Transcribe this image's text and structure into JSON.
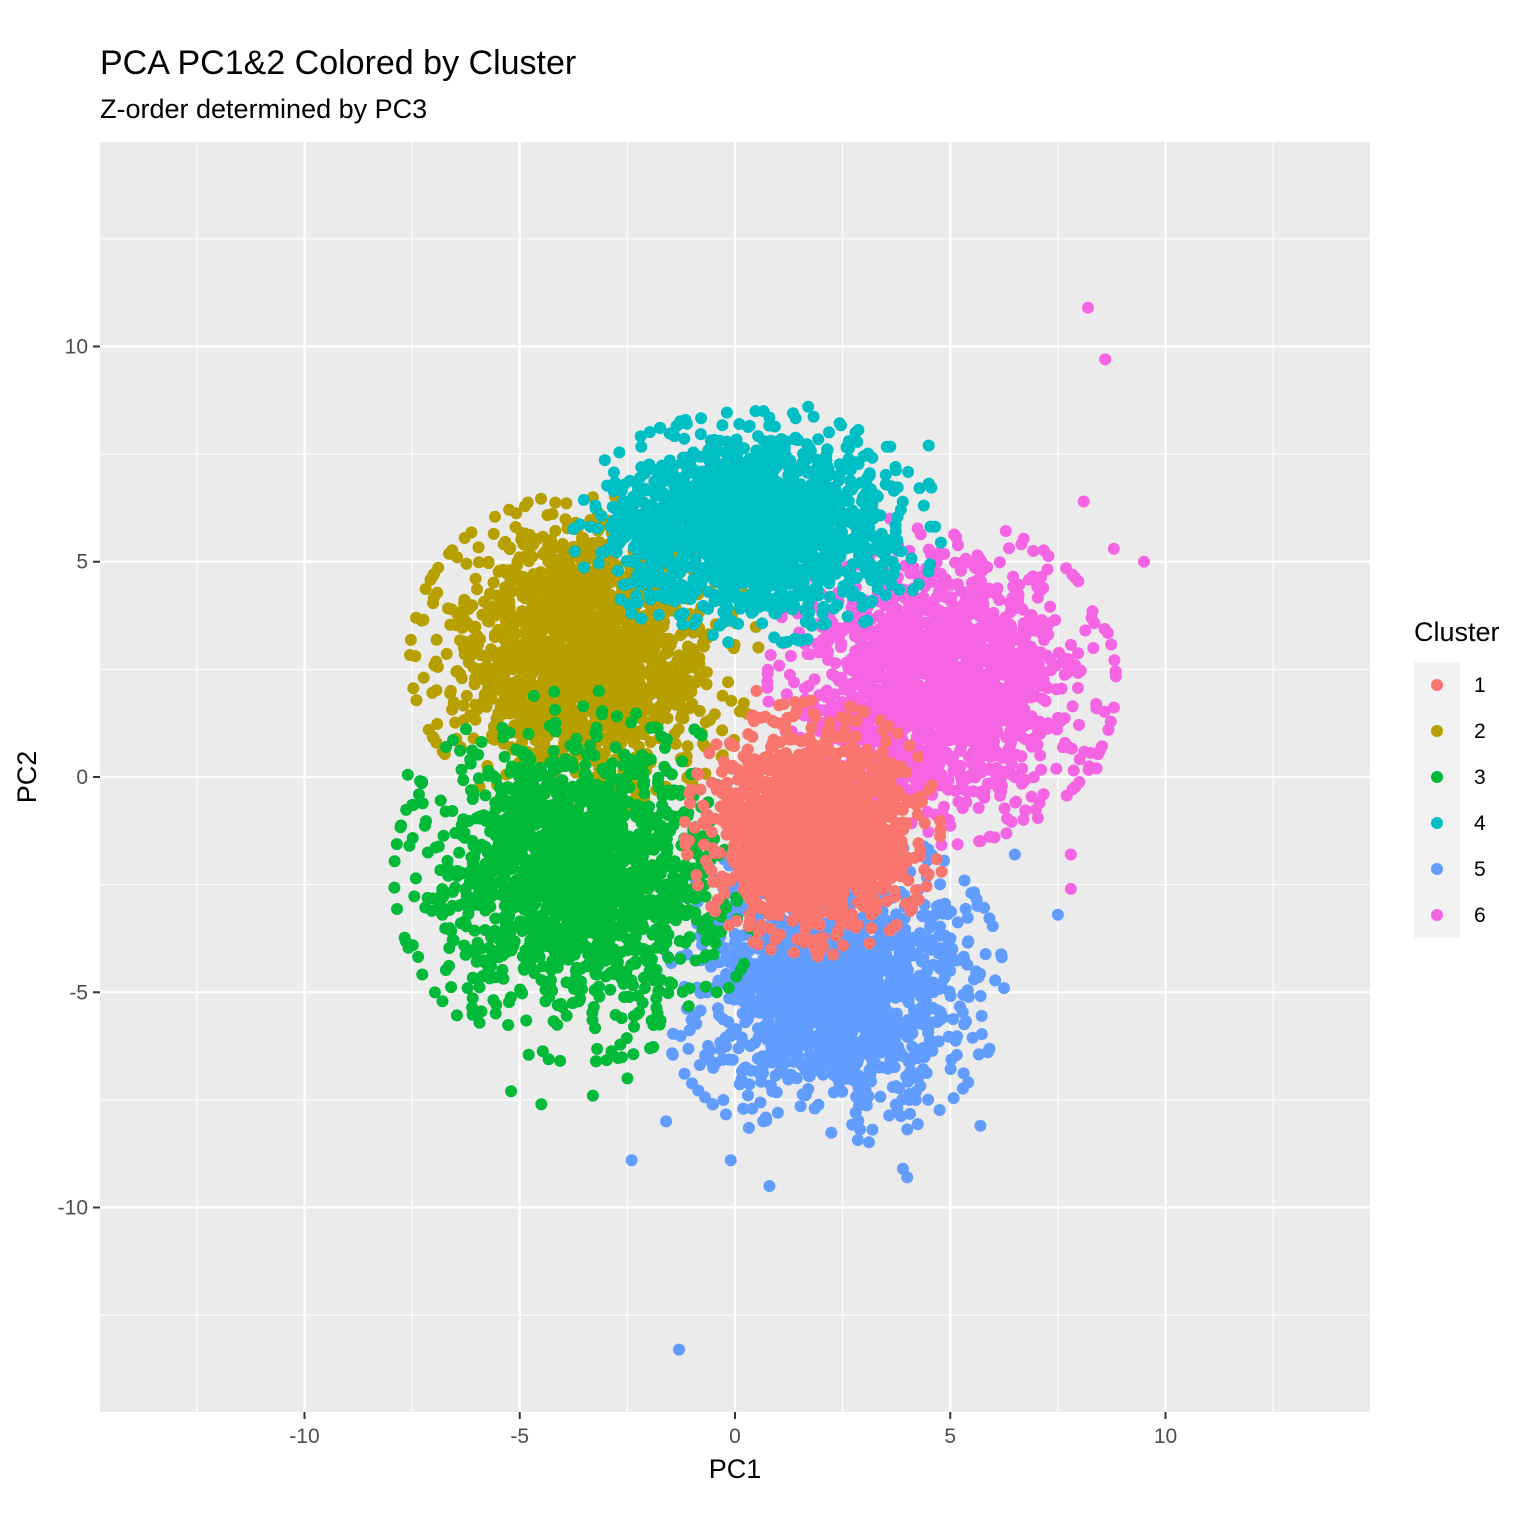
{
  "chart_data": {
    "type": "scatter",
    "title": "PCA PC1&2 Colored by Cluster",
    "subtitle": "Z-order determined by PC3",
    "xlabel": "PC1",
    "ylabel": "PC2",
    "xlim": [
      -14.75,
      14.75
    ],
    "ylim": [
      -14.75,
      14.75
    ],
    "x_ticks": [
      -10,
      -5,
      0,
      5,
      10
    ],
    "x_tick_labels": [
      "-10",
      "-5",
      "0",
      "5",
      "10"
    ],
    "y_ticks": [
      -10,
      -5,
      0,
      5,
      10
    ],
    "y_tick_labels": [
      "-10",
      "-5",
      "0",
      "5",
      "10"
    ],
    "grid": true,
    "legend_position": "right",
    "legend_title": "Cluster",
    "background": "#ebebeb",
    "series": [
      {
        "name": "1",
        "color": "#F8766D",
        "center": [
          1.8,
          -1.2
        ],
        "spread": [
          1.1,
          1.1
        ],
        "outliers": [
          [
            0.5,
            2.0
          ],
          [
            3.5,
            -2.5
          ],
          [
            0.8,
            -3.2
          ],
          [
            4.8,
            -2.2
          ],
          [
            2.5,
            -3.0
          ]
        ]
      },
      {
        "name": "2",
        "color": "#B79F00",
        "center": [
          -3.5,
          2.8
        ],
        "spread": [
          1.5,
          1.4
        ],
        "outliers": [
          [
            -7.0,
            0.9
          ],
          [
            -6.6,
            2.0
          ],
          [
            -5.2,
            4.3
          ],
          [
            -3.3,
            6.5
          ],
          [
            -4.9,
            4.5
          ],
          [
            -6.3,
            3.0
          ]
        ]
      },
      {
        "name": "3",
        "color": "#00BA38",
        "center": [
          -3.6,
          -2.3
        ],
        "spread": [
          1.6,
          1.6
        ],
        "outliers": [
          [
            -7.6,
            0.05
          ],
          [
            -6.8,
            -3.2
          ],
          [
            -6.0,
            -4.7
          ],
          [
            -5.2,
            -7.3
          ],
          [
            -4.5,
            -7.6
          ],
          [
            -3.3,
            -7.4
          ],
          [
            -2.5,
            -7.0
          ],
          [
            -6.5,
            -1.3
          ]
        ]
      },
      {
        "name": "4",
        "color": "#00BFC4",
        "center": [
          0.5,
          5.8
        ],
        "spread": [
          1.6,
          1.0
        ],
        "outliers": [
          [
            1.7,
            8.6
          ],
          [
            0.1,
            8.2
          ],
          [
            -1.3,
            8.2
          ],
          [
            2.8,
            8.0
          ],
          [
            4.5,
            7.7
          ],
          [
            -1.5,
            7.0
          ],
          [
            3.5,
            6.8
          ]
        ]
      },
      {
        "name": "5",
        "color": "#619CFF",
        "center": [
          2.2,
          -4.8
        ],
        "spread": [
          1.5,
          1.4
        ],
        "outliers": [
          [
            -1.3,
            -13.3
          ],
          [
            0.8,
            -9.5
          ],
          [
            -2.4,
            -8.9
          ],
          [
            4.0,
            -9.3
          ],
          [
            5.7,
            -8.1
          ],
          [
            7.5,
            -3.2
          ],
          [
            3.9,
            -9.1
          ],
          [
            -0.1,
            -8.9
          ],
          [
            6.5,
            -1.8
          ],
          [
            -1.6,
            -8.0
          ]
        ]
      },
      {
        "name": "6",
        "color": "#F564E3",
        "center": [
          4.8,
          2.2
        ],
        "spread": [
          1.5,
          1.4
        ],
        "outliers": [
          [
            8.2,
            10.9
          ],
          [
            8.6,
            9.7
          ],
          [
            9.5,
            5.0
          ],
          [
            8.8,
            5.3
          ],
          [
            7.8,
            -2.6
          ],
          [
            8.4,
            0.2
          ],
          [
            8.1,
            6.4
          ],
          [
            7.8,
            -1.8
          ],
          [
            3.6,
            6.0
          ]
        ]
      }
    ]
  }
}
